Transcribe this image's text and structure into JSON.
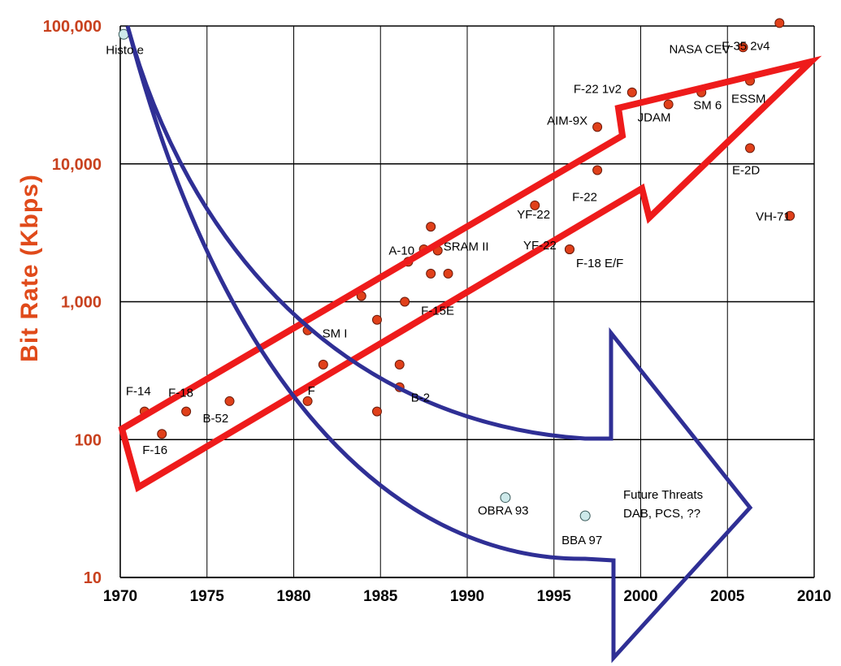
{
  "chart_data": {
    "type": "scatter",
    "title": "",
    "xlabel": "",
    "ylabel": "Bit Rate (Kbps)",
    "xlim": [
      1970,
      2010
    ],
    "ylim": [
      10,
      100000
    ],
    "yscale": "log",
    "grid": "horizontal",
    "x_ticks": [
      "1970",
      "1975",
      "1980",
      "1985",
      "1990",
      "1995",
      "2000",
      "2005",
      "2010"
    ],
    "y_ticks": [
      "10",
      "100",
      "1,000",
      "10,000",
      "100,000"
    ],
    "colors": {
      "point": "#e0401a",
      "legacy_point": "#cde9ea",
      "red_arrow": "#ee1b1b",
      "blue_arrow": "#2f2f95",
      "ylabel": "#e04a1a"
    },
    "points": [
      {
        "x": 1970.2,
        "y": 87000,
        "kind": "legacy",
        "label": "Histo e"
      },
      {
        "x": 1971.4,
        "y": 160,
        "label": "F-14"
      },
      {
        "x": 1972.4,
        "y": 110,
        "label": "F-16"
      },
      {
        "x": 1973.8,
        "y": 160,
        "label": "F-18"
      },
      {
        "x": 1976.3,
        "y": 190,
        "label": "B-52"
      },
      {
        "x": 1980.8,
        "y": 620,
        "label": "SM I"
      },
      {
        "x": 1980.8,
        "y": 190,
        "label": "F"
      },
      {
        "x": 1981.7,
        "y": 350,
        "label": ""
      },
      {
        "x": 1983.9,
        "y": 1100,
        "label": ""
      },
      {
        "x": 1984.8,
        "y": 740,
        "label": ""
      },
      {
        "x": 1984.8,
        "y": 160,
        "label": ""
      },
      {
        "x": 1986.1,
        "y": 350,
        "label": ""
      },
      {
        "x": 1986.1,
        "y": 240,
        "label": "B-2"
      },
      {
        "x": 1986.4,
        "y": 1000,
        "label": "F-15E"
      },
      {
        "x": 1986.6,
        "y": 1950,
        "label": "A-10"
      },
      {
        "x": 1987.5,
        "y": 2400,
        "label": ""
      },
      {
        "x": 1987.9,
        "y": 3500,
        "label": ""
      },
      {
        "x": 1987.9,
        "y": 1600,
        "label": ""
      },
      {
        "x": 1988.3,
        "y": 2350,
        "label": "SRAM II"
      },
      {
        "x": 1988.9,
        "y": 1600,
        "label": ""
      },
      {
        "x": 1992.2,
        "y": 38,
        "kind": "legacy",
        "label": "OBRA 93"
      },
      {
        "x": 1993.9,
        "y": 5000,
        "label": "YF-22"
      },
      {
        "x": 1995.9,
        "y": 2400,
        "label": "YF-22"
      },
      {
        "x": 1995.9,
        "y": 2400,
        "label": "F-18 E/F"
      },
      {
        "x": 1996.8,
        "y": 28,
        "kind": "legacy",
        "label": "BBA 97"
      },
      {
        "x": 1997.5,
        "y": 18500,
        "label": "AIM-9X"
      },
      {
        "x": 1997.5,
        "y": 9000,
        "label": "F-22"
      },
      {
        "x": 1999.5,
        "y": 33000,
        "label": "F-22 1v2"
      },
      {
        "x": 2001.6,
        "y": 27000,
        "label": "JDAM"
      },
      {
        "x": 2003.5,
        "y": 33000,
        "label": "SM 6"
      },
      {
        "x": 2005.9,
        "y": 70000,
        "label": "NASA CEV"
      },
      {
        "x": 2006.3,
        "y": 40000,
        "label": "ESSM"
      },
      {
        "x": 2006.3,
        "y": 13000,
        "label": "E-2D"
      },
      {
        "x": 2008.0,
        "y": 105000,
        "label": "F-35 2v4"
      },
      {
        "x": 2008.6,
        "y": 4200,
        "label": "VH-71"
      }
    ],
    "annotations": [
      "Future Threats",
      "DAB, PCS, ??"
    ]
  }
}
